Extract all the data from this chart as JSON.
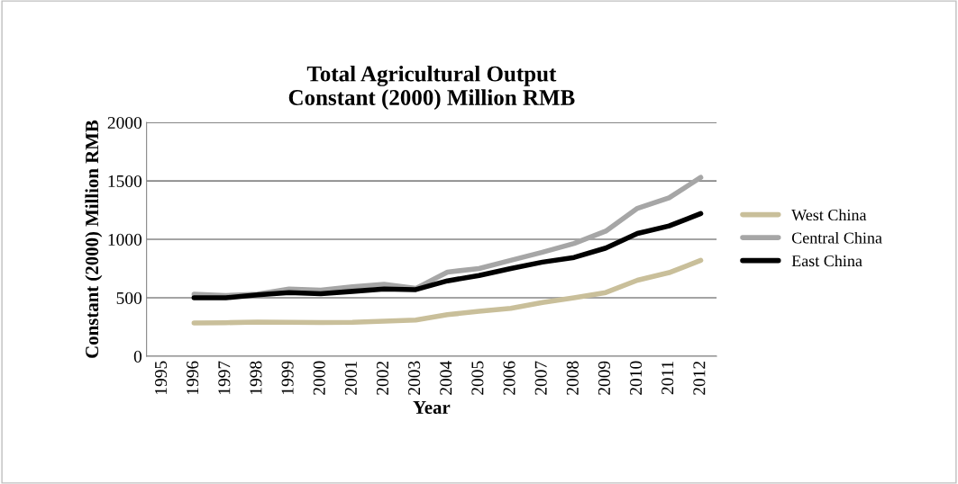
{
  "chart_data": {
    "type": "line",
    "title": "Total Agricultural Output\nConstant (2000) Million RMB",
    "xlabel": "Year",
    "ylabel": "Constant (2000) Million RMB",
    "categories": [
      "1995",
      "1996",
      "1997",
      "1998",
      "1999",
      "2000",
      "2001",
      "2002",
      "2003",
      "2004",
      "2005",
      "2006",
      "2007",
      "2008",
      "2009",
      "2010",
      "2011",
      "2012"
    ],
    "series": [
      {
        "name": "West China",
        "color": "#c9bf9a",
        "values": [
          null,
          285,
          287,
          292,
          290,
          288,
          290,
          300,
          310,
          355,
          385,
          410,
          460,
          500,
          545,
          650,
          715,
          820
        ]
      },
      {
        "name": "Central China",
        "color": "#a6a6a6",
        "values": [
          null,
          530,
          520,
          530,
          575,
          565,
          595,
          615,
          580,
          720,
          750,
          820,
          890,
          965,
          1070,
          1265,
          1355,
          1530
        ]
      },
      {
        "name": "East China",
        "color": "#000000",
        "values": [
          null,
          500,
          500,
          525,
          545,
          535,
          555,
          575,
          570,
          645,
          690,
          750,
          805,
          845,
          925,
          1050,
          1115,
          1220
        ]
      }
    ],
    "ylim": [
      0,
      2000
    ],
    "yticks": [
      0,
      500,
      1000,
      1500,
      2000
    ],
    "grid": "y",
    "legend": "right",
    "marker": "none",
    "line_style": "solid"
  }
}
